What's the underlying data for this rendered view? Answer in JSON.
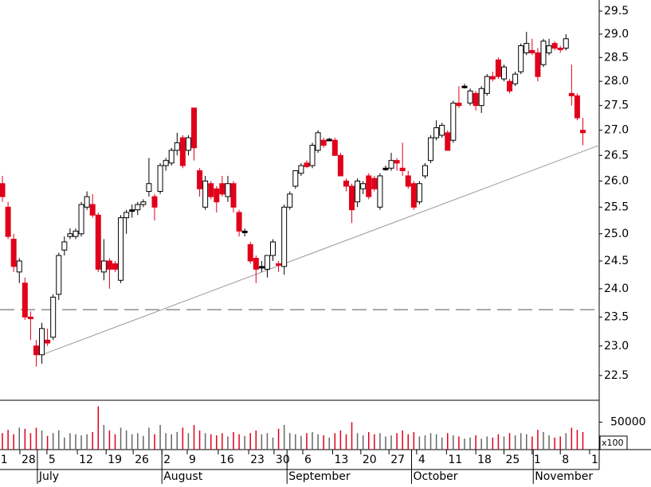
{
  "chart_data": {
    "type": "candlestick",
    "log_scale": true,
    "up_color": "#ffffff",
    "down_color": "#e0001a",
    "flat_color": "#000000",
    "xlim": [
      -0.43,
      105.9
    ],
    "ylim": [
      22.09,
      29.745
    ],
    "yticks": [
      22.5,
      {
        "value": 23,
        "label": "23.0"
      },
      23.5,
      {
        "value": 24,
        "label": "24.0"
      },
      24.5,
      {
        "value": 25,
        "label": "25.0"
      },
      25.5,
      {
        "value": 26,
        "label": "26.0"
      },
      26.5,
      {
        "value": 27,
        "label": "27.0"
      },
      27.5,
      {
        "value": 28,
        "label": "28.0"
      },
      28.5,
      {
        "value": 29,
        "label": "29.0"
      },
      29.5
    ],
    "xticks": [
      {
        "value": -0.6,
        "label": "1"
      },
      {
        "value": 3.1,
        "label": "28"
      },
      {
        "value": 7.9,
        "label": "5"
      },
      {
        "value": 13.3,
        "label": "12"
      },
      {
        "value": 18.4,
        "label": "19"
      },
      {
        "value": 23.2,
        "label": "26"
      },
      {
        "value": 28.3,
        "label": "2"
      },
      {
        "value": 32.8,
        "label": "9"
      },
      {
        "value": 38.3,
        "label": "16"
      },
      {
        "value": 43.7,
        "label": "23"
      },
      {
        "value": 48.2,
        "label": "30"
      },
      {
        "value": 53.3,
        "label": "6"
      },
      {
        "value": 58.6,
        "label": "13"
      },
      {
        "value": 63.6,
        "label": "20"
      },
      {
        "value": 68.6,
        "label": "27"
      },
      {
        "value": 73.5,
        "label": "4"
      },
      {
        "value": 78.8,
        "label": "11"
      },
      {
        "value": 84,
        "label": "18"
      },
      {
        "value": 89,
        "label": "25"
      },
      {
        "value": 94,
        "label": "1"
      },
      {
        "value": 99,
        "label": "8"
      },
      {
        "value": 104.2,
        "label": "1"
      }
    ],
    "months": [
      {
        "value": 6.2,
        "label": "July"
      },
      {
        "value": 28.3,
        "label": "August"
      },
      {
        "value": 50.5,
        "label": "September"
      },
      {
        "value": 72.6,
        "label": "October"
      },
      {
        "value": 94.2,
        "label": "November"
      }
    ],
    "level_line": 23.63,
    "trend_line": {
      "x": [
        7,
        105.9
      ],
      "y": [
        22.85,
        26.7
      ]
    },
    "open": [
      25.95,
      25.5,
      24.9,
      24.3,
      24.1,
      23.5,
      23.0,
      22.85,
      23.1,
      23.15,
      23.9,
      24.7,
      24.95,
      24.95,
      25.0,
      25.5,
      25.55,
      25.35,
      24.3,
      24.5,
      24.45,
      24.15,
      25.3,
      25.45,
      25.45,
      25.55,
      25.8,
      25.7,
      25.8,
      26.3,
      26.35,
      26.6,
      26.85,
      26.6,
      27.45,
      26.2,
      25.5,
      25.95,
      25.85,
      25.95,
      25.7,
      25.95,
      25.4,
      25.05,
      24.8,
      24.55,
      24.4,
      24.35,
      24.6,
      24.45,
      24.4,
      25.5,
      25.9,
      26.15,
      26.35,
      26.3,
      26.6,
      26.8,
      26.82,
      26.8,
      26.5,
      26.0,
      25.9,
      25.6,
      25.85,
      26.1,
      26.05,
      25.5,
      26.25,
      26.25,
      26.4,
      26.25,
      26.1,
      25.95,
      25.6,
      26.1,
      26.4,
      26.85,
      26.9,
      26.95,
      26.8,
      27.55,
      27.9,
      27.55,
      27.75,
      27.5,
      27.75,
      28.1,
      28.45,
      28.05,
      28.0,
      27.95,
      28.2,
      28.6,
      28.65,
      28.6,
      28.35,
      28.6,
      28.8,
      28.7,
      28.7,
      27.75,
      27.7,
      27.0
    ],
    "high": [
      26.1,
      25.6,
      25.0,
      24.55,
      24.2,
      23.6,
      23.1,
      23.4,
      23.3,
      23.9,
      24.65,
      24.95,
      25.1,
      25.1,
      25.6,
      25.8,
      25.75,
      25.4,
      24.9,
      24.55,
      24.5,
      25.35,
      25.45,
      25.55,
      25.6,
      25.65,
      26.45,
      25.75,
      26.35,
      26.45,
      26.65,
      26.95,
      26.9,
      26.9,
      27.45,
      26.25,
      26.1,
      26.0,
      25.9,
      26.1,
      26.1,
      26.0,
      25.45,
      25.1,
      24.85,
      24.6,
      24.5,
      24.6,
      24.9,
      24.5,
      25.55,
      25.8,
      26.2,
      26.35,
      26.4,
      26.75,
      27.0,
      26.85,
      26.85,
      26.85,
      26.55,
      26.05,
      25.95,
      26.05,
      26.0,
      26.15,
      26.1,
      26.15,
      26.3,
      26.55,
      26.45,
      26.75,
      26.2,
      26.0,
      26.0,
      26.35,
      26.9,
      27.2,
      27.15,
      27.0,
      27.6,
      27.9,
      27.95,
      27.85,
      27.8,
      27.9,
      28.15,
      28.2,
      28.5,
      28.35,
      28.05,
      28.2,
      28.8,
      29.05,
      28.9,
      28.7,
      28.9,
      28.9,
      28.85,
      28.75,
      29.0,
      28.35,
      27.75,
      27.25
    ],
    "low": [
      25.6,
      24.9,
      24.3,
      24.1,
      23.45,
      23.1,
      22.65,
      22.7,
      23.0,
      23.1,
      23.8,
      24.6,
      24.9,
      24.9,
      24.95,
      25.45,
      25.3,
      24.3,
      24.15,
      24.0,
      24.3,
      24.1,
      25.0,
      25.3,
      25.35,
      25.5,
      25.7,
      25.25,
      25.75,
      26.2,
      26.3,
      26.5,
      26.25,
      26.5,
      26.4,
      25.7,
      25.45,
      25.65,
      25.4,
      25.7,
      25.6,
      25.4,
      24.95,
      24.95,
      24.45,
      24.1,
      24.3,
      24.2,
      24.5,
      24.3,
      24.25,
      25.45,
      25.85,
      26.1,
      26.25,
      26.25,
      26.55,
      26.65,
      26.78,
      26.5,
      26.1,
      25.8,
      25.2,
      25.5,
      25.75,
      25.65,
      25.8,
      25.45,
      26.2,
      26.2,
      26.2,
      26.1,
      25.85,
      25.45,
      25.55,
      26.05,
      26.35,
      26.8,
      26.85,
      26.6,
      26.75,
      27.45,
      27.85,
      27.5,
      27.4,
      27.35,
      27.7,
      28.0,
      28.05,
      28.0,
      27.75,
      27.9,
      28.15,
      28.55,
      28.55,
      28.0,
      28.3,
      28.55,
      28.65,
      28.6,
      28.65,
      27.5,
      27.2,
      26.7
    ],
    "close": [
      25.7,
      24.95,
      24.4,
      24.5,
      23.5,
      23.47,
      22.85,
      23.3,
      23.05,
      23.85,
      24.6,
      24.85,
      25.0,
      25.05,
      25.55,
      25.7,
      25.35,
      24.35,
      24.5,
      24.35,
      24.35,
      25.3,
      25.4,
      25.45,
      25.55,
      25.6,
      25.95,
      25.5,
      26.3,
      26.4,
      26.6,
      26.75,
      26.3,
      26.85,
      26.65,
      25.85,
      26.0,
      25.7,
      25.6,
      25.75,
      25.95,
      25.5,
      25.05,
      25.05,
      24.5,
      24.35,
      24.4,
      24.6,
      24.85,
      24.43,
      25.5,
      25.75,
      26.2,
      26.3,
      26.28,
      26.7,
      26.95,
      26.7,
      26.82,
      26.5,
      26.1,
      25.9,
      25.45,
      26.0,
      25.95,
      25.7,
      25.85,
      26.1,
      26.25,
      26.4,
      26.35,
      26.2,
      25.9,
      25.5,
      25.95,
      26.3,
      26.85,
      27.05,
      27.1,
      26.6,
      27.55,
      27.5,
      27.9,
      27.8,
      27.5,
      27.85,
      28.1,
      28.05,
      28.1,
      28.3,
      27.8,
      28.15,
      28.75,
      28.8,
      28.6,
      28.1,
      28.85,
      28.75,
      28.7,
      28.68,
      28.9,
      27.7,
      27.25,
      26.95
    ],
    "volume": {
      "ylim": [
        0,
        90000
      ],
      "yticks": [
        50000
      ],
      "unit_label": "x100",
      "values": [
        30000,
        36000,
        28000,
        40000,
        38000,
        30000,
        40000,
        35000,
        25000,
        30000,
        35000,
        22000,
        30000,
        28000,
        26000,
        28000,
        32000,
        79000,
        45000,
        35000,
        28000,
        40000,
        35000,
        28000,
        30000,
        25000,
        40000,
        28000,
        45000,
        30000,
        28000,
        32000,
        40000,
        30000,
        45000,
        35000,
        30000,
        28000,
        26000,
        30000,
        24000,
        32000,
        28000,
        25000,
        30000,
        35000,
        28000,
        30000,
        22000,
        38000,
        45000,
        30000,
        28000,
        25000,
        30000,
        32000,
        28000,
        26000,
        22000,
        30000,
        35000,
        28000,
        50000,
        30000,
        26000,
        32000,
        28000,
        30000,
        24000,
        26000,
        30000,
        35000,
        28000,
        32000,
        24000,
        26000,
        30000,
        28000,
        22000,
        30000,
        26000,
        24000,
        20000,
        22000,
        26000,
        20000,
        24000,
        22000,
        28000,
        24000,
        30000,
        26000,
        30000,
        28000,
        24000,
        36000,
        32000,
        26000,
        22000,
        24000,
        30000,
        40000,
        36000,
        32000
      ]
    }
  }
}
